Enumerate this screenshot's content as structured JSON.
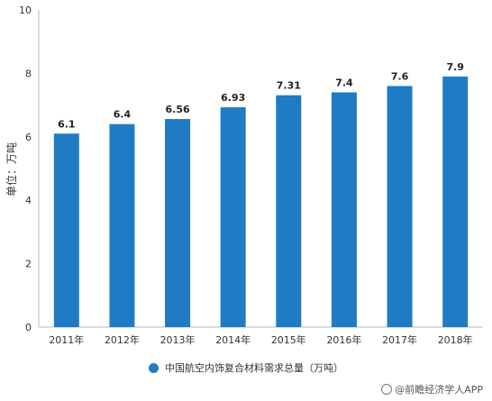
{
  "chart_data": {
    "type": "bar",
    "title": "",
    "xlabel": "",
    "ylabel": "单位：万吨",
    "ylim": [
      0,
      10
    ],
    "yticks": [
      0,
      2,
      4,
      6,
      8,
      10
    ],
    "grid": false,
    "legend_position": "bottom",
    "categories": [
      "2011年",
      "2012年",
      "2013年",
      "2014年",
      "2015年",
      "2016年",
      "2017年",
      "2018年"
    ],
    "series": [
      {
        "name": "中国航空内饰复合材料需求总量（万吨）",
        "values": [
          6.1,
          6.4,
          6.56,
          6.93,
          7.31,
          7.4,
          7.6,
          7.9
        ],
        "data_labels": [
          "6.1",
          "6.4",
          "6.56",
          "6.93",
          "7.31",
          "7.4",
          "7.6",
          "7.9"
        ],
        "color": "#1f7bc4"
      }
    ]
  },
  "watermark": {
    "text": "@前瞻经济学人APP",
    "icon": "qianzhan-logo-icon"
  }
}
